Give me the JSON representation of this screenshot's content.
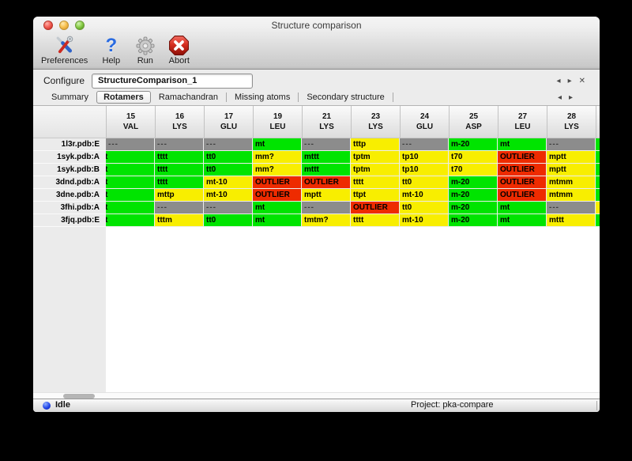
{
  "window": {
    "title": "Structure comparison"
  },
  "toolbar": {
    "items": [
      {
        "label": "Preferences",
        "icon": "preferences-tools-icon"
      },
      {
        "label": "Help",
        "icon": "help-question-icon"
      },
      {
        "label": "Run",
        "icon": "run-gear-icon"
      },
      {
        "label": "Abort",
        "icon": "abort-stop-icon"
      }
    ]
  },
  "configure": {
    "label": "Configure",
    "value": "StructureComparison_1",
    "nav": {
      "prev": "◂",
      "next": "▸",
      "close": "✕"
    }
  },
  "tabs": {
    "items": [
      {
        "label": "Summary",
        "selected": false
      },
      {
        "label": "Rotamers",
        "selected": true
      },
      {
        "label": "Ramachandran",
        "selected": false
      },
      {
        "label": "Missing atoms",
        "selected": false
      },
      {
        "label": "Secondary structure",
        "selected": false
      }
    ],
    "nav": {
      "prev": "◂",
      "next": "▸"
    }
  },
  "table": {
    "columns": [
      {
        "num": "15",
        "res": "VAL"
      },
      {
        "num": "16",
        "res": "LYS"
      },
      {
        "num": "17",
        "res": "GLU"
      },
      {
        "num": "19",
        "res": "LEU"
      },
      {
        "num": "21",
        "res": "LYS"
      },
      {
        "num": "23",
        "res": "LYS"
      },
      {
        "num": "24",
        "res": "GLU"
      },
      {
        "num": "25",
        "res": "ASP"
      },
      {
        "num": "27",
        "res": "LEU"
      },
      {
        "num": "28",
        "res": "LYS"
      }
    ],
    "rows": [
      {
        "label": "1l3r.pdb:E",
        "edge": "green",
        "cells": [
          {
            "t": "---",
            "s": "gray"
          },
          {
            "t": "---",
            "s": "gray"
          },
          {
            "t": "---",
            "s": "gray"
          },
          {
            "t": "mt",
            "s": "green"
          },
          {
            "t": "---",
            "s": "gray"
          },
          {
            "t": "tttp",
            "s": "yellow"
          },
          {
            "t": "---",
            "s": "gray"
          },
          {
            "t": "m-20",
            "s": "green"
          },
          {
            "t": "mt",
            "s": "green"
          },
          {
            "t": "---",
            "s": "gray"
          }
        ]
      },
      {
        "label": "1syk.pdb:A",
        "edge": "green",
        "cells": [
          {
            "t": "t",
            "s": "green",
            "clip": true
          },
          {
            "t": "tttt",
            "s": "green"
          },
          {
            "t": "tt0",
            "s": "green"
          },
          {
            "t": "mm?",
            "s": "yellow"
          },
          {
            "t": "mttt",
            "s": "green"
          },
          {
            "t": "tptm",
            "s": "yellow"
          },
          {
            "t": "tp10",
            "s": "yellow"
          },
          {
            "t": "t70",
            "s": "yellow"
          },
          {
            "t": "OUTLIER",
            "s": "red"
          },
          {
            "t": "mptt",
            "s": "yellow"
          }
        ]
      },
      {
        "label": "1syk.pdb:B",
        "edge": "green",
        "cells": [
          {
            "t": "t",
            "s": "green",
            "clip": true
          },
          {
            "t": "tttt",
            "s": "green"
          },
          {
            "t": "tt0",
            "s": "green"
          },
          {
            "t": "mm?",
            "s": "yellow"
          },
          {
            "t": "mttt",
            "s": "green"
          },
          {
            "t": "tptm",
            "s": "yellow"
          },
          {
            "t": "tp10",
            "s": "yellow"
          },
          {
            "t": "t70",
            "s": "yellow"
          },
          {
            "t": "OUTLIER",
            "s": "red"
          },
          {
            "t": "mptt",
            "s": "yellow"
          }
        ]
      },
      {
        "label": "3dnd.pdb:A",
        "edge": "green",
        "cells": [
          {
            "t": "t",
            "s": "green",
            "clip": true
          },
          {
            "t": "tttt",
            "s": "green"
          },
          {
            "t": "mt-10",
            "s": "yellow"
          },
          {
            "t": "OUTLIER",
            "s": "red"
          },
          {
            "t": "OUTLIER",
            "s": "red"
          },
          {
            "t": "tttt",
            "s": "yellow"
          },
          {
            "t": "tt0",
            "s": "yellow"
          },
          {
            "t": "m-20",
            "s": "green"
          },
          {
            "t": "OUTLIER",
            "s": "red"
          },
          {
            "t": "mtmm",
            "s": "yellow"
          }
        ]
      },
      {
        "label": "3dne.pdb:A",
        "edge": "green",
        "cells": [
          {
            "t": "t",
            "s": "green",
            "clip": true
          },
          {
            "t": "mttp",
            "s": "yellow"
          },
          {
            "t": "mt-10",
            "s": "yellow"
          },
          {
            "t": "OUTLIER",
            "s": "red"
          },
          {
            "t": "mptt",
            "s": "yellow"
          },
          {
            "t": "ttpt",
            "s": "yellow"
          },
          {
            "t": "mt-10",
            "s": "yellow"
          },
          {
            "t": "m-20",
            "s": "green"
          },
          {
            "t": "OUTLIER",
            "s": "red"
          },
          {
            "t": "mtmm",
            "s": "yellow"
          }
        ]
      },
      {
        "label": "3fhi.pdb:A",
        "edge": "yellow",
        "cells": [
          {
            "t": "t",
            "s": "green",
            "clip": true
          },
          {
            "t": "---",
            "s": "gray"
          },
          {
            "t": "---",
            "s": "gray"
          },
          {
            "t": "mt",
            "s": "green"
          },
          {
            "t": "---",
            "s": "gray"
          },
          {
            "t": "OUTLIER",
            "s": "red"
          },
          {
            "t": "tt0",
            "s": "yellow"
          },
          {
            "t": "m-20",
            "s": "green"
          },
          {
            "t": "mt",
            "s": "green"
          },
          {
            "t": "---",
            "s": "gray"
          }
        ]
      },
      {
        "label": "3fjq.pdb:E",
        "edge": "green",
        "cells": [
          {
            "t": "t",
            "s": "green",
            "clip": true
          },
          {
            "t": "tttm",
            "s": "yellow"
          },
          {
            "t": "tt0",
            "s": "green"
          },
          {
            "t": "mt",
            "s": "green"
          },
          {
            "t": "tmtm?",
            "s": "yellow"
          },
          {
            "t": "tttt",
            "s": "yellow"
          },
          {
            "t": "mt-10",
            "s": "yellow"
          },
          {
            "t": "m-20",
            "s": "green"
          },
          {
            "t": "mt",
            "s": "green"
          },
          {
            "t": "mttt",
            "s": "yellow"
          }
        ]
      }
    ]
  },
  "status_bar": {
    "status": "Idle",
    "project": "Project: pka-compare"
  },
  "colors": {
    "green": "#00e400",
    "yellow": "#f8ee00",
    "red": "#ee2b00",
    "gray": "#8c8c8c"
  }
}
